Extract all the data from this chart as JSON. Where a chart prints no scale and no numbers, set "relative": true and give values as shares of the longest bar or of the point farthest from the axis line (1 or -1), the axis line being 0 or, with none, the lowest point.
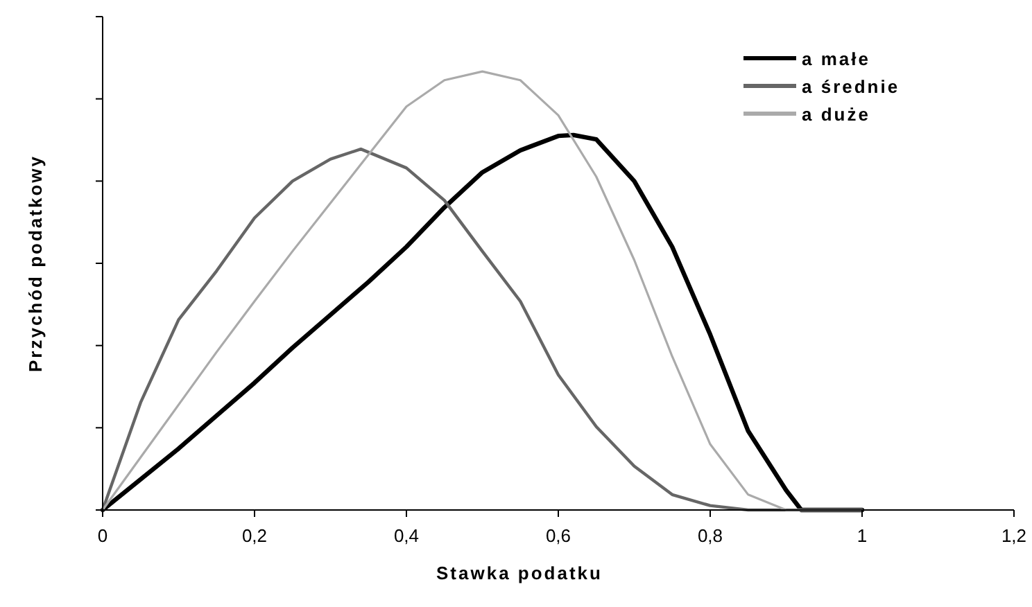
{
  "chart_data": {
    "type": "line",
    "relative": true,
    "xlabel": "Stawka podatku",
    "ylabel": "Przychód podatkowy",
    "xlim": [
      0,
      1.2
    ],
    "xticks": [
      0,
      {
        "value": 0.2,
        "label": "0,2"
      },
      {
        "value": 0.4,
        "label": "0,4"
      },
      {
        "value": 0.6,
        "label": "0,6"
      },
      {
        "value": 0.8,
        "label": "0,8"
      },
      1,
      {
        "value": 1.2,
        "label": "1,2"
      }
    ],
    "legend": "top right",
    "grid": false,
    "marker": "none",
    "line_style": "solid",
    "series": [
      {
        "name": "a małe",
        "color": "#000000",
        "x": [
          0,
          0.05,
          0.1,
          0.15,
          0.2,
          0.25,
          0.3,
          0.35,
          0.4,
          0.45,
          0.5,
          0.55,
          0.6,
          0.62,
          0.65,
          0.7,
          0.75,
          0.8,
          0.85,
          0.9,
          0.92,
          1
        ],
        "values": [
          0,
          0.07,
          0.14,
          0.215,
          0.29,
          0.37,
          0.445,
          0.52,
          0.6,
          0.69,
          0.77,
          0.82,
          0.853,
          0.855,
          0.845,
          0.75,
          0.6,
          0.4,
          0.18,
          0.045,
          0,
          0
        ]
      },
      {
        "name": "a średnie",
        "color": "#666666",
        "x": [
          0,
          0.05,
          0.1,
          0.15,
          0.2,
          0.25,
          0.3,
          0.34,
          0.4,
          0.45,
          0.5,
          0.55,
          0.6,
          0.65,
          0.7,
          0.75,
          0.8,
          0.85,
          1
        ],
        "values": [
          0,
          0.245,
          0.434,
          0.545,
          0.666,
          0.75,
          0.8,
          0.823,
          0.78,
          0.706,
          0.59,
          0.476,
          0.308,
          0.19,
          0.1,
          0.035,
          0.01,
          0,
          0
        ]
      },
      {
        "name": "a duże",
        "color": "#aaaaaa",
        "x": [
          0,
          0.05,
          0.1,
          0.15,
          0.2,
          0.25,
          0.3,
          0.35,
          0.4,
          0.45,
          0.5,
          0.55,
          0.6,
          0.65,
          0.7,
          0.75,
          0.8,
          0.85,
          0.9,
          1
        ],
        "values": [
          0,
          0.12,
          0.24,
          0.36,
          0.476,
          0.59,
          0.7,
          0.81,
          0.92,
          0.98,
          1,
          0.98,
          0.9,
          0.76,
          0.57,
          0.35,
          0.15,
          0.035,
          0,
          0
        ]
      }
    ]
  }
}
